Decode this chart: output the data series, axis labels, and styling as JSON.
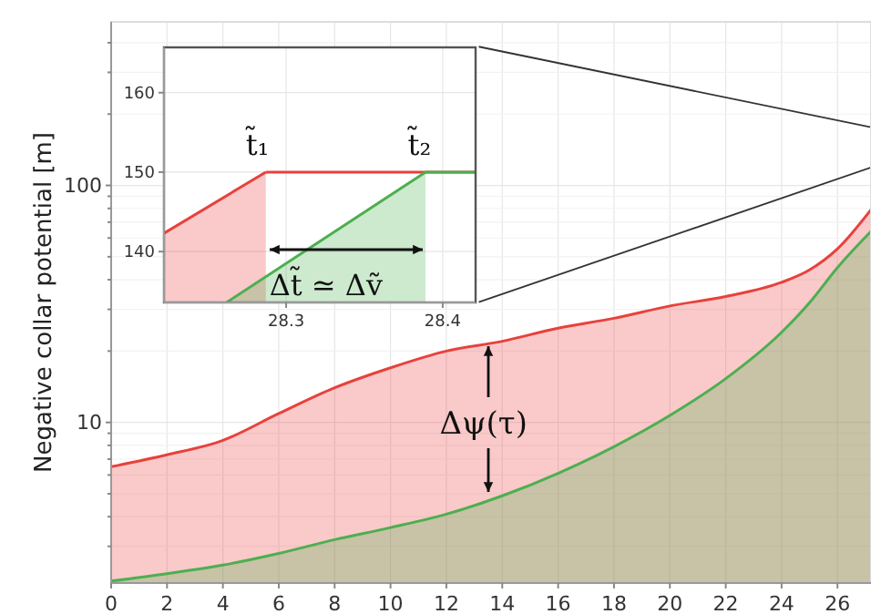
{
  "chart_data": [
    {
      "type": "area",
      "ylabel": "Negative collar potential [m]",
      "log": true,
      "grid": true,
      "xlim": [
        0,
        27.2
      ],
      "ylim": [
        2.1,
        490
      ],
      "xticks": [
        0,
        2,
        4,
        6,
        8,
        10,
        12,
        14,
        16,
        18,
        20,
        22,
        24,
        26
      ],
      "yticks": [
        {
          "value": 3,
          "label": null
        },
        {
          "value": 4,
          "label": null
        },
        {
          "value": 5,
          "label": null
        },
        {
          "value": 6,
          "label": null
        },
        {
          "value": 7,
          "label": null
        },
        {
          "value": 8,
          "label": null
        },
        {
          "value": 9,
          "label": null
        },
        10,
        {
          "value": 20,
          "label": null
        },
        {
          "value": 30,
          "label": null
        },
        {
          "value": 40,
          "label": null
        },
        {
          "value": 50,
          "label": null
        },
        {
          "value": 60,
          "label": null
        },
        {
          "value": 70,
          "label": null
        },
        {
          "value": 80,
          "label": null
        },
        {
          "value": 90,
          "label": null
        },
        100,
        {
          "value": 200,
          "label": null
        },
        {
          "value": 300,
          "label": null
        },
        {
          "value": 400,
          "label": null
        }
      ],
      "x": [
        0,
        2,
        4,
        6,
        8,
        10,
        12,
        14,
        16,
        18,
        20,
        22,
        24,
        25,
        26,
        27.2
      ],
      "series": [
        {
          "color": "#e8413c",
          "values": [
            6.5,
            7.3,
            8.4,
            10.9,
            14,
            17,
            20,
            22,
            25,
            27.5,
            31,
            34,
            39,
            44,
            54,
            79
          ]
        },
        {
          "color": "#4caf50",
          "values": [
            2.14,
            2.3,
            2.5,
            2.8,
            3.2,
            3.6,
            4.1,
            4.9,
            6.1,
            7.9,
            10.7,
            15.3,
            24,
            32,
            45,
            64
          ]
        },
        {
          "type": "line",
          "color": "#333333",
          "x": [
            13.16,
            27.2
          ],
          "values": [
            385,
            176
          ]
        },
        {
          "type": "line",
          "color": "#333333",
          "x": [
            13.16,
            27.2
          ],
          "values": [
            32.2,
            119
          ]
        }
      ],
      "annotations": [
        "Δψ(τ)"
      ]
    },
    {
      "type": "line",
      "grid": true,
      "xlim": [
        28.222,
        28.421
      ],
      "ylim": [
        133.6,
        165.7
      ],
      "xticks": [
        28.3,
        28.4
      ],
      "yticks": [
        140,
        150,
        160
      ],
      "series": [
        {
          "type": "area",
          "color": "#e8413c",
          "x": [
            28.222,
            28.287
          ],
          "values": [
            142.3,
            150
          ]
        },
        {
          "color": "#e8413c",
          "x": [
            28.287,
            28.421
          ],
          "values": [
            150,
            150
          ]
        },
        {
          "type": "area",
          "color": "#4caf50",
          "x": [
            28.262,
            28.389
          ],
          "values": [
            133.6,
            150
          ]
        },
        {
          "color": "#4caf50",
          "x": [
            28.389,
            28.421
          ],
          "values": [
            150,
            150
          ]
        }
      ],
      "annotations": [
        "t̃₁",
        "t̃₂",
        "Δt̃ ≃ Δṽ"
      ]
    }
  ]
}
